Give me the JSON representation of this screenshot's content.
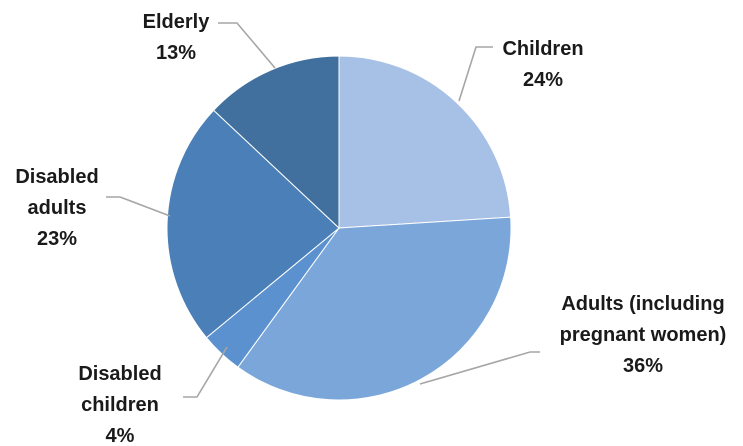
{
  "chart_data": {
    "type": "pie",
    "title": "",
    "legend": "none",
    "slices": [
      {
        "name": "Children",
        "label_lines": [
          "Children"
        ],
        "value": 24,
        "value_label": "24%",
        "color": "#a7c0e5"
      },
      {
        "name": "Adults (including pregnant women)",
        "label_lines": [
          "Adults (including",
          "pregnant women)"
        ],
        "value": 36,
        "value_label": "36%",
        "color": "#7aa6d9"
      },
      {
        "name": "Disabled children",
        "label_lines": [
          "Disabled",
          "children"
        ],
        "value": 4,
        "value_label": "4%",
        "color": "#5b91cf"
      },
      {
        "name": "Disabled adults",
        "label_lines": [
          "Disabled",
          "adults"
        ],
        "value": 23,
        "value_label": "23%",
        "color": "#4a7fb8"
      },
      {
        "name": "Elderly",
        "label_lines": [
          "Elderly"
        ],
        "value": 13,
        "value_label": "13%",
        "color": "#41709f"
      }
    ]
  }
}
